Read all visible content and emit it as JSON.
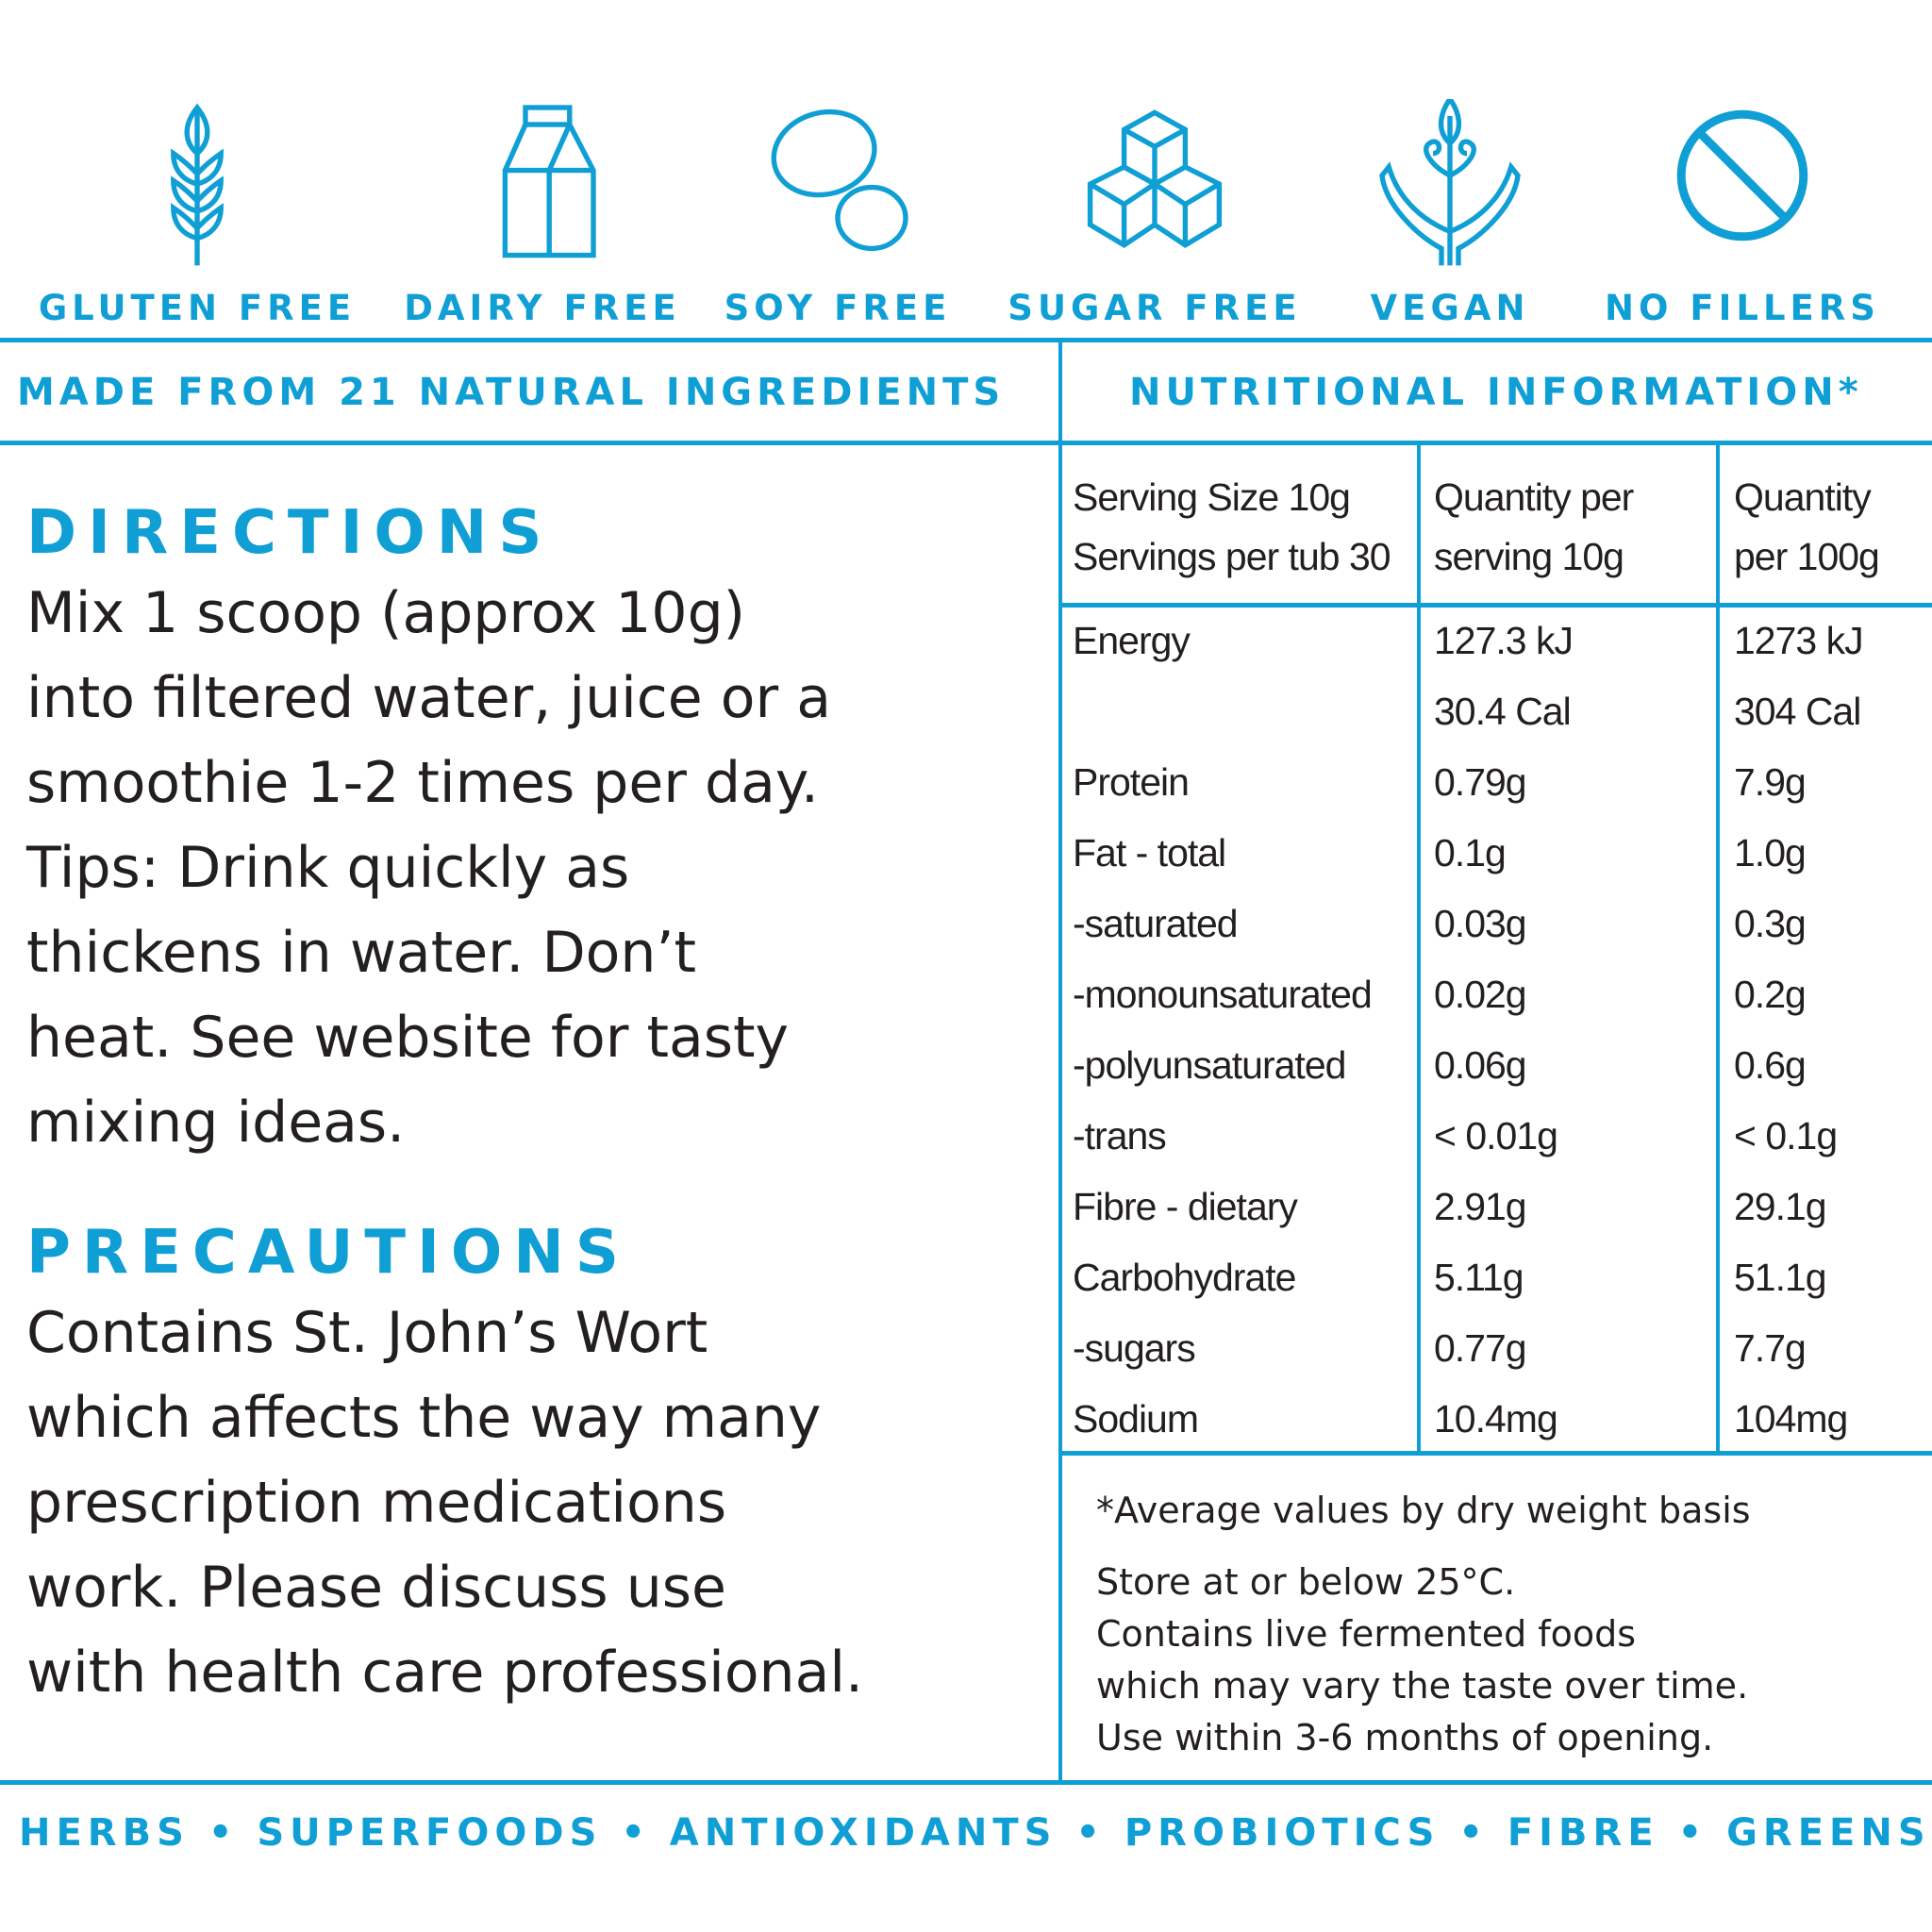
{
  "brand_color": "#0f9fd5",
  "badges": [
    {
      "label": "GLUTEN FREE",
      "icon": "wheat-icon"
    },
    {
      "label": "DAIRY FREE",
      "icon": "milk-carton-icon"
    },
    {
      "label": "SOY FREE",
      "icon": "soybean-icon"
    },
    {
      "label": "SUGAR FREE",
      "icon": "sugar-cubes-icon"
    },
    {
      "label": "VEGAN",
      "icon": "plant-hands-icon"
    },
    {
      "label": "NO FILLERS",
      "icon": "prohibited-icon"
    }
  ],
  "band": {
    "left": "MADE FROM 21 NATURAL INGREDIENTS",
    "right": "NUTRITIONAL INFORMATION*"
  },
  "directions": {
    "heading": "DIRECTIONS",
    "lines": [
      "Mix 1 scoop (approx 10g)",
      "into filtered water, juice or a",
      "smoothie 1-2 times per day.",
      "Tips: Drink quickly as",
      "thickens in water. Don’t",
      "heat. See website for tasty",
      "mixing ideas."
    ]
  },
  "precautions": {
    "heading": "PRECAUTIONS",
    "lines": [
      "Contains St. John’s Wort",
      "which affects the way many",
      "prescription medications",
      "work. Please discuss use",
      "with health care professional."
    ]
  },
  "nutrition": {
    "header": {
      "serving_size": "Serving Size 10g",
      "servings_per_tub": "Servings per tub 30",
      "col2_line1": "Quantity per",
      "col2_line2": "serving 10g",
      "col3_line1": "Quantity",
      "col3_line2": "per 100g"
    },
    "rows": [
      [
        "Energy",
        "127.3 kJ",
        "1273 kJ"
      ],
      [
        "",
        "30.4 Cal",
        "304 Cal"
      ],
      [
        "Protein",
        "0.79g",
        "7.9g"
      ],
      [
        "Fat - total",
        "0.1g",
        "1.0g"
      ],
      [
        "-saturated",
        "0.03g",
        "0.3g"
      ],
      [
        "-monounsaturated",
        "0.02g",
        "0.2g"
      ],
      [
        "-polyunsaturated",
        "0.06g",
        "0.6g"
      ],
      [
        "-trans",
        "< 0.01g",
        "< 0.1g"
      ],
      [
        "Fibre - dietary",
        "2.91g",
        "29.1g"
      ],
      [
        "Carbohydrate",
        "5.11g",
        "51.1g"
      ],
      [
        "-sugars",
        "0.77g",
        "7.7g"
      ],
      [
        "Sodium",
        "10.4mg",
        "104mg"
      ]
    ]
  },
  "notes": {
    "footnote": "*Average values by dry weight basis",
    "storage": [
      "Store at or below 25°C.",
      "Contains live fermented foods",
      "which may vary the taste over time.",
      "Use within 3-6 months of opening."
    ]
  },
  "footer": "HERBS • SUPERFOODS • ANTIOXIDANTS • PROBIOTICS • FIBRE • GREENS"
}
